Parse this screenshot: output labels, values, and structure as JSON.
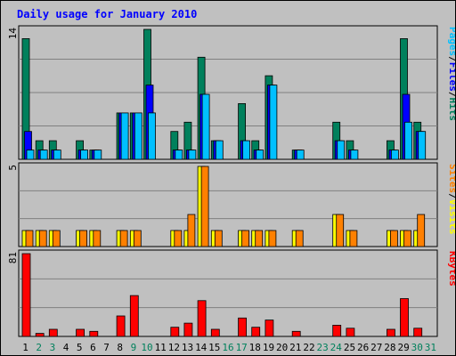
{
  "chart_data": {
    "type": "bar",
    "title": "Daily usage for January 2010",
    "categories": [
      "1",
      "2",
      "3",
      "4",
      "5",
      "6",
      "7",
      "8",
      "9",
      "10",
      "11",
      "12",
      "13",
      "14",
      "15",
      "16",
      "17",
      "18",
      "19",
      "20",
      "21",
      "22",
      "23",
      "24",
      "25",
      "26",
      "27",
      "28",
      "29",
      "30",
      "31"
    ],
    "weekend_days": [
      "2",
      "3",
      "9",
      "10",
      "16",
      "17",
      "23",
      "24",
      "30",
      "31"
    ],
    "panels": [
      {
        "id": "hits_files_pages",
        "max_label": "14",
        "ylim": [
          0,
          14
        ],
        "series": [
          {
            "name": "Hits",
            "color": "#00805c",
            "values": [
              13,
              2,
              2,
              0,
              2,
              1,
              0,
              5,
              5,
              14,
              0,
              3,
              4,
              11,
              2,
              0,
              6,
              2,
              9,
              0,
              1,
              0,
              0,
              4,
              2,
              0,
              0,
              2,
              13,
              4,
              0
            ]
          },
          {
            "name": "Files",
            "color": "#0000ff",
            "values": [
              3,
              1,
              1,
              0,
              1,
              1,
              0,
              5,
              5,
              8,
              0,
              1,
              1,
              7,
              2,
              0,
              2,
              1,
              8,
              0,
              1,
              0,
              0,
              2,
              1,
              0,
              0,
              1,
              7,
              3,
              0
            ]
          },
          {
            "name": "Pages",
            "color": "#00c0ff",
            "values": [
              1,
              1,
              1,
              0,
              1,
              1,
              0,
              5,
              5,
              5,
              0,
              1,
              1,
              7,
              2,
              0,
              2,
              1,
              8,
              0,
              1,
              0,
              0,
              2,
              1,
              0,
              0,
              1,
              4,
              3,
              0
            ]
          }
        ],
        "legend": [
          "Pages",
          "/",
          "Files",
          "/",
          "Hits"
        ]
      },
      {
        "id": "sites_visits",
        "max_label": "5",
        "ylim": [
          0,
          5
        ],
        "series": [
          {
            "name": "Visits",
            "color": "#ffff00",
            "values": [
              1,
              1,
              1,
              0,
              1,
              1,
              0,
              1,
              1,
              0,
              0,
              1,
              1,
              5,
              1,
              0,
              1,
              1,
              1,
              0,
              1,
              0,
              0,
              2,
              1,
              0,
              0,
              1,
              1,
              1,
              0
            ]
          },
          {
            "name": "Sites",
            "color": "#ff8000",
            "values": [
              1,
              1,
              1,
              0,
              1,
              1,
              0,
              1,
              1,
              0,
              0,
              1,
              2,
              5,
              1,
              0,
              1,
              1,
              1,
              0,
              1,
              0,
              0,
              2,
              1,
              0,
              0,
              1,
              1,
              2,
              0
            ]
          }
        ],
        "legend": [
          "Sites",
          "/",
          "Visits"
        ]
      },
      {
        "id": "kbytes",
        "max_label": "81",
        "ylim": [
          0,
          81
        ],
        "series": [
          {
            "name": "KBytes",
            "color": "#ff0000",
            "values": [
              81,
              3,
              7,
              0,
              7,
              5,
              0,
              20,
              40,
              0,
              0,
              9,
              13,
              35,
              7,
              0,
              18,
              9,
              16,
              0,
              5,
              0,
              0,
              11,
              8,
              0,
              0,
              7,
              37,
              8,
              0
            ]
          }
        ],
        "legend": [
          "KBytes"
        ]
      }
    ]
  }
}
